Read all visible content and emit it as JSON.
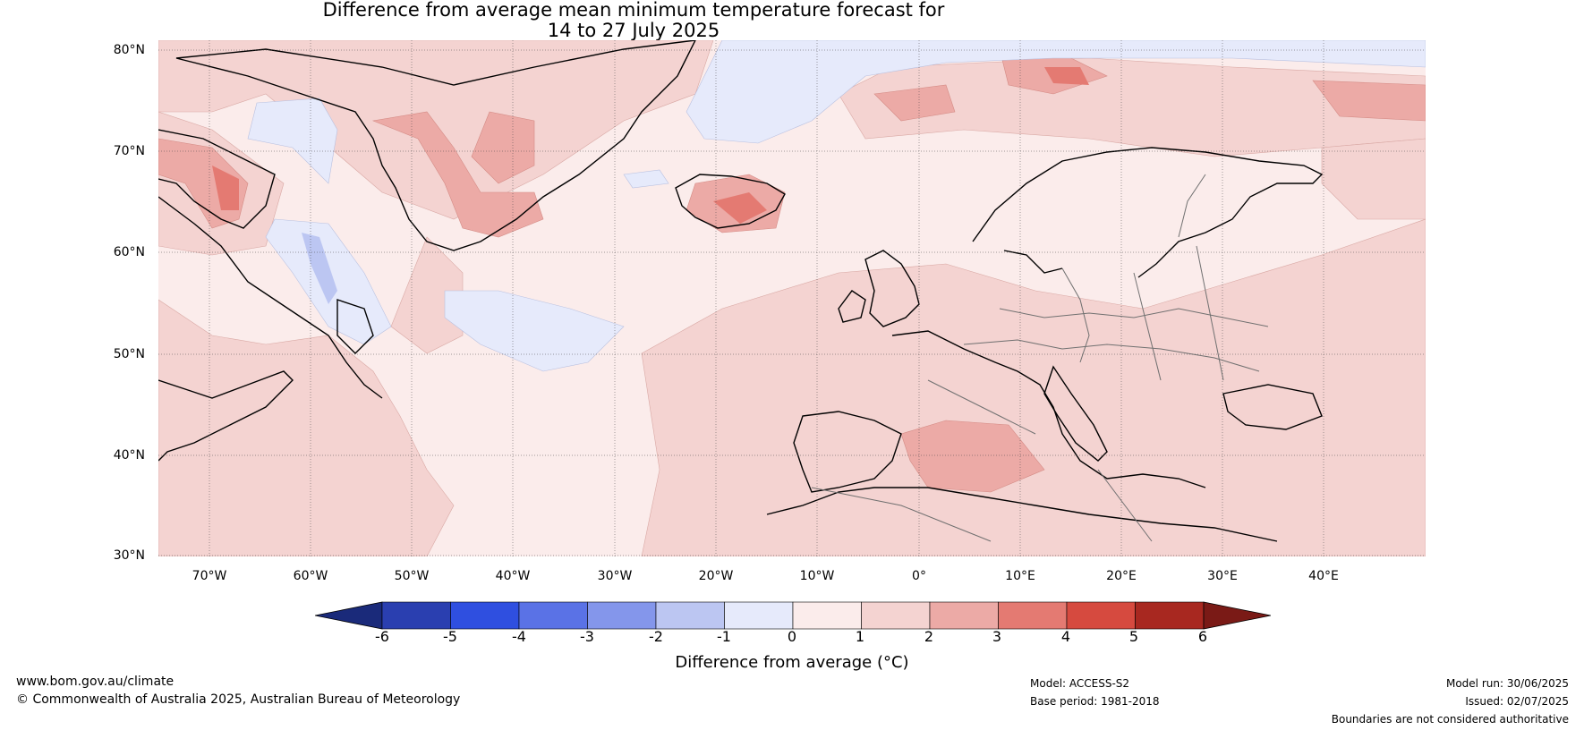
{
  "title_line1": "Difference from average mean minimum temperature forecast for",
  "title_line2": "14 to 27 July 2025",
  "lat_labels": [
    "80°N",
    "70°N",
    "60°N",
    "50°N",
    "40°N",
    "30°N"
  ],
  "lon_labels": [
    "70°W",
    "60°W",
    "50°W",
    "40°W",
    "30°W",
    "20°W",
    "10°W",
    "0°",
    "10°E",
    "20°E",
    "30°E",
    "40°E"
  ],
  "colorbar": {
    "ticks": [
      "-6",
      "-5",
      "-4",
      "-3",
      "-2",
      "-1",
      "0",
      "1",
      "2",
      "3",
      "4",
      "5",
      "6"
    ],
    "colors": [
      "#1a2a7a",
      "#2a3fb0",
      "#2f4fe0",
      "#5a72e6",
      "#8496eb",
      "#bcc6f2",
      "#e6eafb",
      "#fbeceb",
      "#f4d3d1",
      "#ecaaa6",
      "#e47a72",
      "#d64a3f",
      "#a82820",
      "#7a1a16"
    ],
    "label": "Difference from average (°C)"
  },
  "map": {
    "extent_lon": [
      -75,
      50
    ],
    "extent_lat": [
      30,
      81
    ],
    "grid_lons": [
      -70,
      -60,
      -50,
      -40,
      -30,
      -20,
      -10,
      0,
      10,
      20,
      30,
      40
    ],
    "grid_lats": [
      80,
      70,
      60,
      50,
      40,
      30
    ]
  },
  "footer": {
    "url": "www.bom.gov.au/climate",
    "copyright": "© Commonwealth of Australia 2025, Australian Bureau of Meteorology",
    "model": "Model: ACCESS-S2",
    "base_period": "Base period: 1981-2018",
    "model_run": "Model run: 30/06/2025",
    "issued": "Issued: 02/07/2025",
    "disclaimer": "Boundaries are not considered authoritative"
  }
}
